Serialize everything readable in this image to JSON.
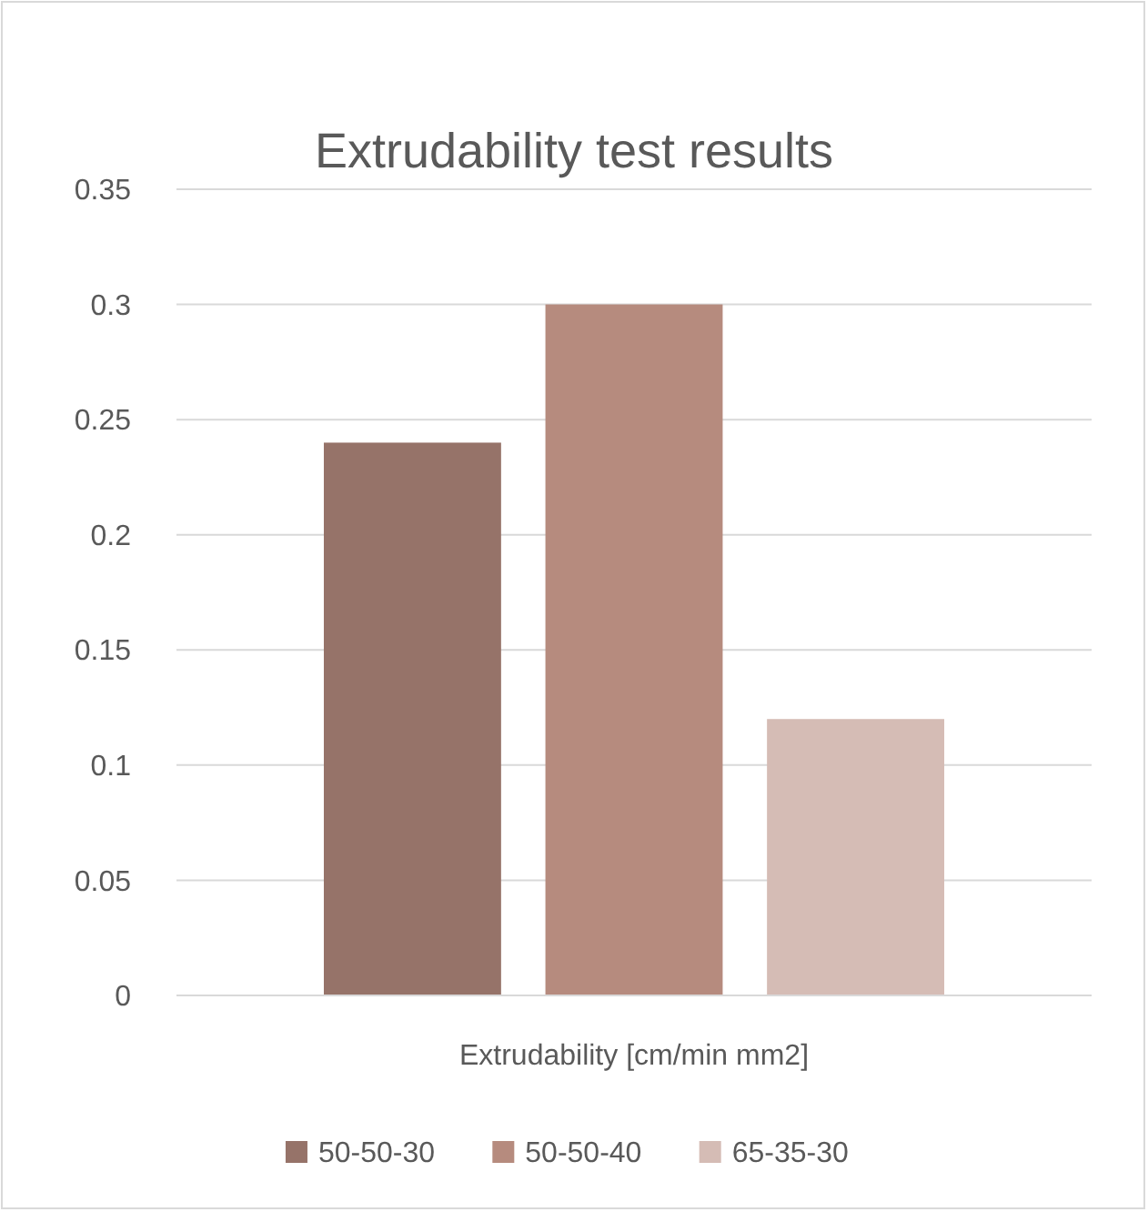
{
  "chart_data": {
    "type": "bar",
    "title": "Extrudability test results",
    "categories": [
      "Extrudability [cm/min mm2]"
    ],
    "series": [
      {
        "name": "50-50-30",
        "color": "#967369",
        "values": [
          0.24
        ]
      },
      {
        "name": "50-50-40",
        "color": "#b68b7e",
        "values": [
          0.3
        ]
      },
      {
        "name": "65-35-30",
        "color": "#d5bcb5",
        "values": [
          0.12
        ]
      }
    ],
    "ylim": [
      0,
      0.35
    ],
    "yticks": [
      0,
      0.05,
      0.1,
      0.15,
      0.2,
      0.25,
      0.3,
      0.35
    ],
    "grid": "y",
    "legend": "bottom"
  }
}
